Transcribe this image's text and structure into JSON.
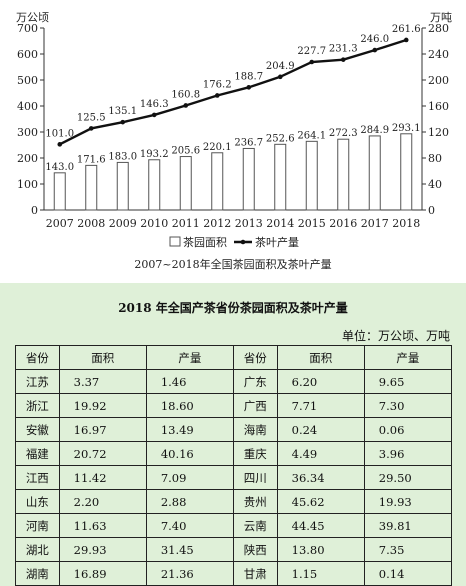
{
  "chart_data": {
    "type": "bar+line",
    "categories": [
      "2007",
      "2008",
      "2009",
      "2010",
      "2011",
      "2012",
      "2013",
      "2014",
      "2015",
      "2016",
      "2017",
      "2018"
    ],
    "series": [
      {
        "name": "茶园面积",
        "type": "bar",
        "axis": "left",
        "values": [
          143.0,
          171.6,
          183.0,
          193.2,
          205.6,
          220.1,
          236.7,
          252.6,
          264.1,
          272.3,
          284.9,
          293.1
        ]
      },
      {
        "name": "茶叶产量",
        "type": "line",
        "axis": "right",
        "values": [
          101.0,
          125.5,
          135.1,
          146.3,
          160.8,
          176.2,
          188.7,
          204.9,
          227.7,
          231.3,
          246.0,
          261.6
        ]
      }
    ],
    "bar_labels": [
      "143.0",
      "171.6",
      "183.0",
      "193.2",
      "205.6",
      "220.1",
      "236.7",
      "252.6",
      "264.1",
      "272.3",
      "284.9",
      "293.1"
    ],
    "line_labels": [
      "101.0",
      "125.5",
      "135.1",
      "146.3",
      "160.8",
      "176.2",
      "188.7",
      "204.9",
      "227.7",
      "231.3",
      "246.0",
      "261.6"
    ],
    "left_axis_label": "万公顷",
    "right_axis_label": "万吨",
    "left_ticks": [
      "0",
      "100",
      "200",
      "300",
      "400",
      "500",
      "600",
      "700"
    ],
    "right_ticks": [
      "0",
      "40",
      "80",
      "120",
      "160",
      "200",
      "240",
      "280"
    ],
    "ylim_left": [
      0,
      700
    ],
    "ylim_right": [
      0,
      280
    ],
    "caption": "2007~2018年全国茶园面积及茶叶产量",
    "legend_position": "bottom-center",
    "grid": false,
    "colors": {
      "bar_fill": "#ffffff",
      "bar_stroke": "#555555",
      "line": "#111111"
    }
  },
  "table": {
    "title": "2018 年全国产茶省份茶园面积及茶叶产量",
    "unit": "单位：万公顷、万吨",
    "headers": [
      "省份",
      "面积",
      "产量",
      "省份",
      "面积",
      "产量"
    ],
    "rows": [
      [
        "江苏",
        "3.37",
        "1.46",
        "广东",
        "6.20",
        "9.65"
      ],
      [
        "浙江",
        "19.92",
        "18.60",
        "广西",
        "7.71",
        "7.30"
      ],
      [
        "安徽",
        "16.97",
        "13.49",
        "海南",
        "0.24",
        "0.06"
      ],
      [
        "福建",
        "20.72",
        "40.16",
        "重庆",
        "4.49",
        "3.96"
      ],
      [
        "江西",
        "11.42",
        "7.09",
        "四川",
        "36.34",
        "29.50"
      ],
      [
        "山东",
        "2.20",
        "2.88",
        "贵州",
        "45.62",
        "19.93"
      ],
      [
        "河南",
        "11.63",
        "7.40",
        "云南",
        "44.45",
        "39.81"
      ],
      [
        "湖北",
        "29.93",
        "31.45",
        "陕西",
        "13.80",
        "7.35"
      ],
      [
        "湖南",
        "16.89",
        "21.36",
        "甘肃",
        "1.15",
        "0.14"
      ]
    ],
    "background": "#dff0d8"
  }
}
